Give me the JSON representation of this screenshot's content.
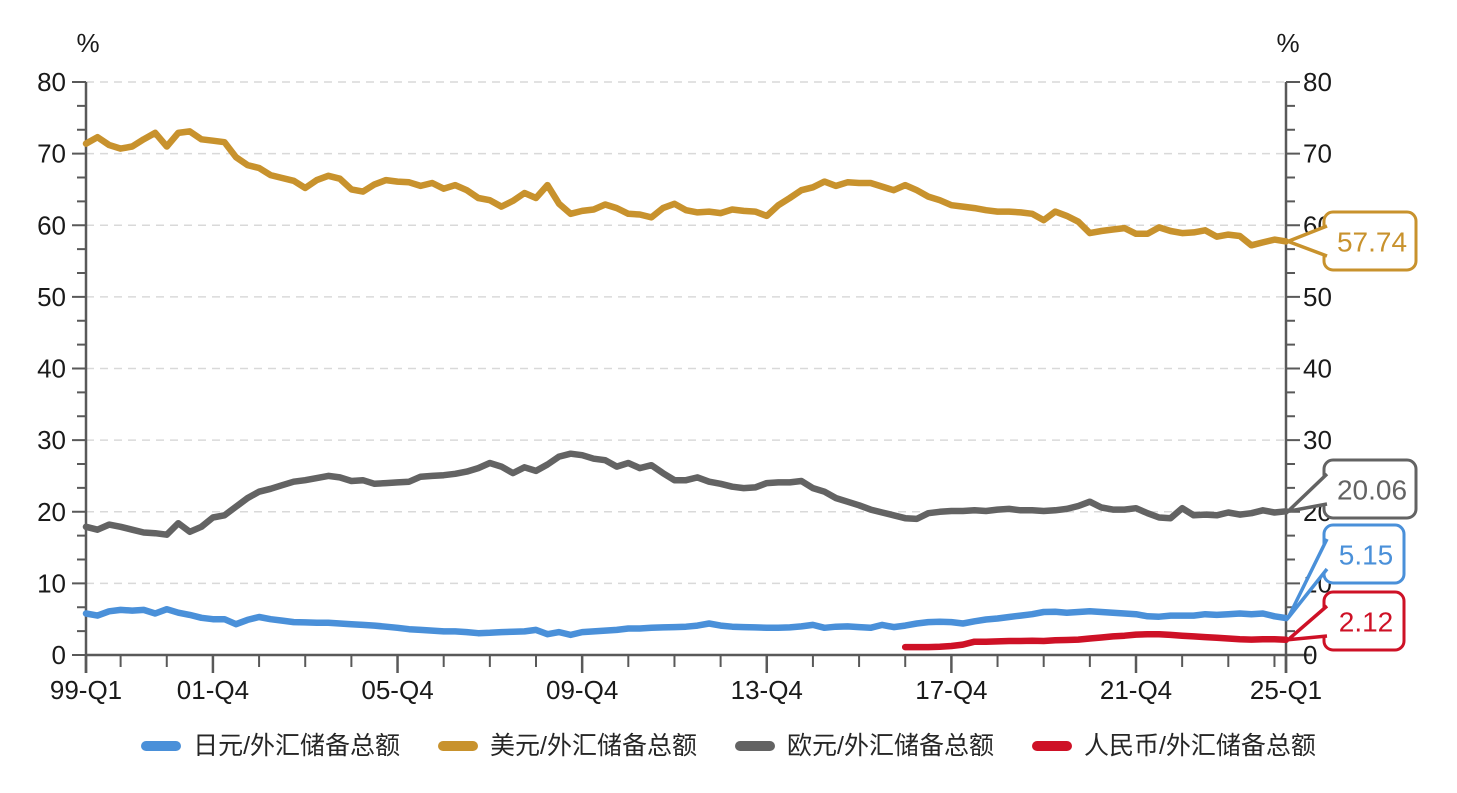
{
  "axes": {
    "left_unit_label": "%",
    "right_unit_label": "%",
    "y_ticks": [
      0,
      10,
      20,
      30,
      40,
      50,
      60,
      70,
      80
    ],
    "colors": {
      "axis": "#595959",
      "grid": "#D9D9D9",
      "tick_label": "#1a1a1a"
    }
  },
  "chart_data": {
    "type": "line",
    "title": "",
    "unit": "%",
    "x_unit": "quarter",
    "x_start": "1999-Q1",
    "x_end": "2025-Q1",
    "n_points": 105,
    "ylim": [
      0,
      80
    ],
    "y_major_step": 10,
    "grid": "horizontal-dashed",
    "legend_position": "bottom",
    "x_major_tick_labels": [
      {
        "label": "99-Q1",
        "index": 0
      },
      {
        "label": "01-Q4",
        "index": 11
      },
      {
        "label": "05-Q4",
        "index": 27
      },
      {
        "label": "09-Q4",
        "index": 43
      },
      {
        "label": "13-Q4",
        "index": 59
      },
      {
        "label": "17-Q4",
        "index": 75
      },
      {
        "label": "21-Q4",
        "index": 91
      },
      {
        "label": "25-Q1",
        "index": 104
      }
    ],
    "series": [
      {
        "id": "jpy",
        "name": "日元/外汇储备总额",
        "color": "#4A90D9",
        "start_index": 0,
        "end_value_label": "5.15",
        "values": [
          5.8,
          5.5,
          6.1,
          6.3,
          6.2,
          6.3,
          5.8,
          6.4,
          5.9,
          5.6,
          5.2,
          5.0,
          5.0,
          4.3,
          4.9,
          5.3,
          5.0,
          4.8,
          4.6,
          4.55,
          4.5,
          4.5,
          4.4,
          4.3,
          4.2,
          4.1,
          3.95,
          3.8,
          3.6,
          3.5,
          3.4,
          3.3,
          3.3,
          3.2,
          3.05,
          3.1,
          3.2,
          3.25,
          3.3,
          3.5,
          2.9,
          3.2,
          2.8,
          3.2,
          3.3,
          3.4,
          3.5,
          3.7,
          3.7,
          3.8,
          3.85,
          3.9,
          3.95,
          4.1,
          4.4,
          4.1,
          3.95,
          3.9,
          3.85,
          3.8,
          3.8,
          3.85,
          4.0,
          4.2,
          3.8,
          3.95,
          4.0,
          3.9,
          3.8,
          4.2,
          3.9,
          4.1,
          4.4,
          4.6,
          4.65,
          4.6,
          4.4,
          4.7,
          4.95,
          5.1,
          5.3,
          5.5,
          5.7,
          6.0,
          6.05,
          5.9,
          6.0,
          6.1,
          6.0,
          5.9,
          5.8,
          5.7,
          5.4,
          5.35,
          5.5,
          5.5,
          5.5,
          5.7,
          5.6,
          5.7,
          5.8,
          5.7,
          5.8,
          5.4,
          5.15
        ]
      },
      {
        "id": "usd",
        "name": "美元/外汇储备总额",
        "color": "#C8922D",
        "start_index": 0,
        "end_value_label": "57.74",
        "values": [
          71.4,
          72.3,
          71.2,
          70.7,
          71.0,
          72.0,
          72.9,
          71.0,
          72.9,
          73.1,
          72.0,
          71.8,
          71.6,
          69.5,
          68.4,
          68.0,
          67.0,
          66.6,
          66.2,
          65.2,
          66.3,
          66.9,
          66.5,
          65.0,
          64.7,
          65.7,
          66.3,
          66.1,
          66.0,
          65.5,
          65.9,
          65.1,
          65.6,
          64.9,
          63.8,
          63.5,
          62.6,
          63.4,
          64.5,
          63.8,
          65.6,
          63.0,
          61.6,
          62.0,
          62.2,
          62.9,
          62.4,
          61.6,
          61.5,
          61.1,
          62.4,
          63.0,
          62.1,
          61.8,
          61.9,
          61.7,
          62.2,
          62.0,
          61.9,
          61.3,
          62.8,
          63.8,
          64.9,
          65.3,
          66.1,
          65.5,
          66.0,
          65.9,
          65.9,
          65.4,
          64.9,
          65.6,
          64.9,
          64.0,
          63.5,
          62.8,
          62.6,
          62.4,
          62.1,
          61.9,
          61.9,
          61.8,
          61.6,
          60.7,
          61.9,
          61.3,
          60.5,
          58.9,
          59.2,
          59.4,
          59.6,
          58.8,
          58.8,
          59.7,
          59.2,
          58.9,
          59.0,
          59.3,
          58.4,
          58.7,
          58.5,
          57.2,
          57.6,
          58.0,
          57.74
        ]
      },
      {
        "id": "eur",
        "name": "欧元/外汇储备总额",
        "color": "#636363",
        "start_index": 0,
        "end_value_label": "20.06",
        "values": [
          17.9,
          17.5,
          18.2,
          17.9,
          17.5,
          17.1,
          17.0,
          16.8,
          18.4,
          17.2,
          17.9,
          19.2,
          19.5,
          20.7,
          21.9,
          22.8,
          23.2,
          23.7,
          24.2,
          24.4,
          24.7,
          25.0,
          24.8,
          24.3,
          24.4,
          23.9,
          24.0,
          24.1,
          24.2,
          24.9,
          25.0,
          25.1,
          25.3,
          25.6,
          26.1,
          26.8,
          26.3,
          25.4,
          26.2,
          25.7,
          26.6,
          27.7,
          28.1,
          27.9,
          27.4,
          27.2,
          26.3,
          26.8,
          26.1,
          26.5,
          25.4,
          24.4,
          24.4,
          24.8,
          24.2,
          23.9,
          23.5,
          23.3,
          23.4,
          24.0,
          24.1,
          24.1,
          24.3,
          23.3,
          22.8,
          21.9,
          21.4,
          20.9,
          20.3,
          19.9,
          19.5,
          19.1,
          19.0,
          19.8,
          20.0,
          20.1,
          20.1,
          20.2,
          20.1,
          20.3,
          20.4,
          20.2,
          20.2,
          20.1,
          20.2,
          20.4,
          20.8,
          21.4,
          20.6,
          20.3,
          20.3,
          20.5,
          19.8,
          19.2,
          19.1,
          20.5,
          19.5,
          19.6,
          19.5,
          19.9,
          19.6,
          19.8,
          20.2,
          19.9,
          20.06
        ]
      },
      {
        "id": "cny",
        "name": "人民币/外汇储备总额",
        "color": "#CE1126",
        "start_index": 71,
        "end_value_label": "2.12",
        "values": [
          1.1,
          1.1,
          1.1,
          1.15,
          1.25,
          1.45,
          1.85,
          1.85,
          1.9,
          1.95,
          1.95,
          2.0,
          1.95,
          2.05,
          2.1,
          2.15,
          2.3,
          2.45,
          2.6,
          2.7,
          2.85,
          2.9,
          2.9,
          2.8,
          2.7,
          2.6,
          2.5,
          2.4,
          2.3,
          2.2,
          2.15,
          2.2,
          2.2,
          2.12
        ]
      }
    ]
  }
}
